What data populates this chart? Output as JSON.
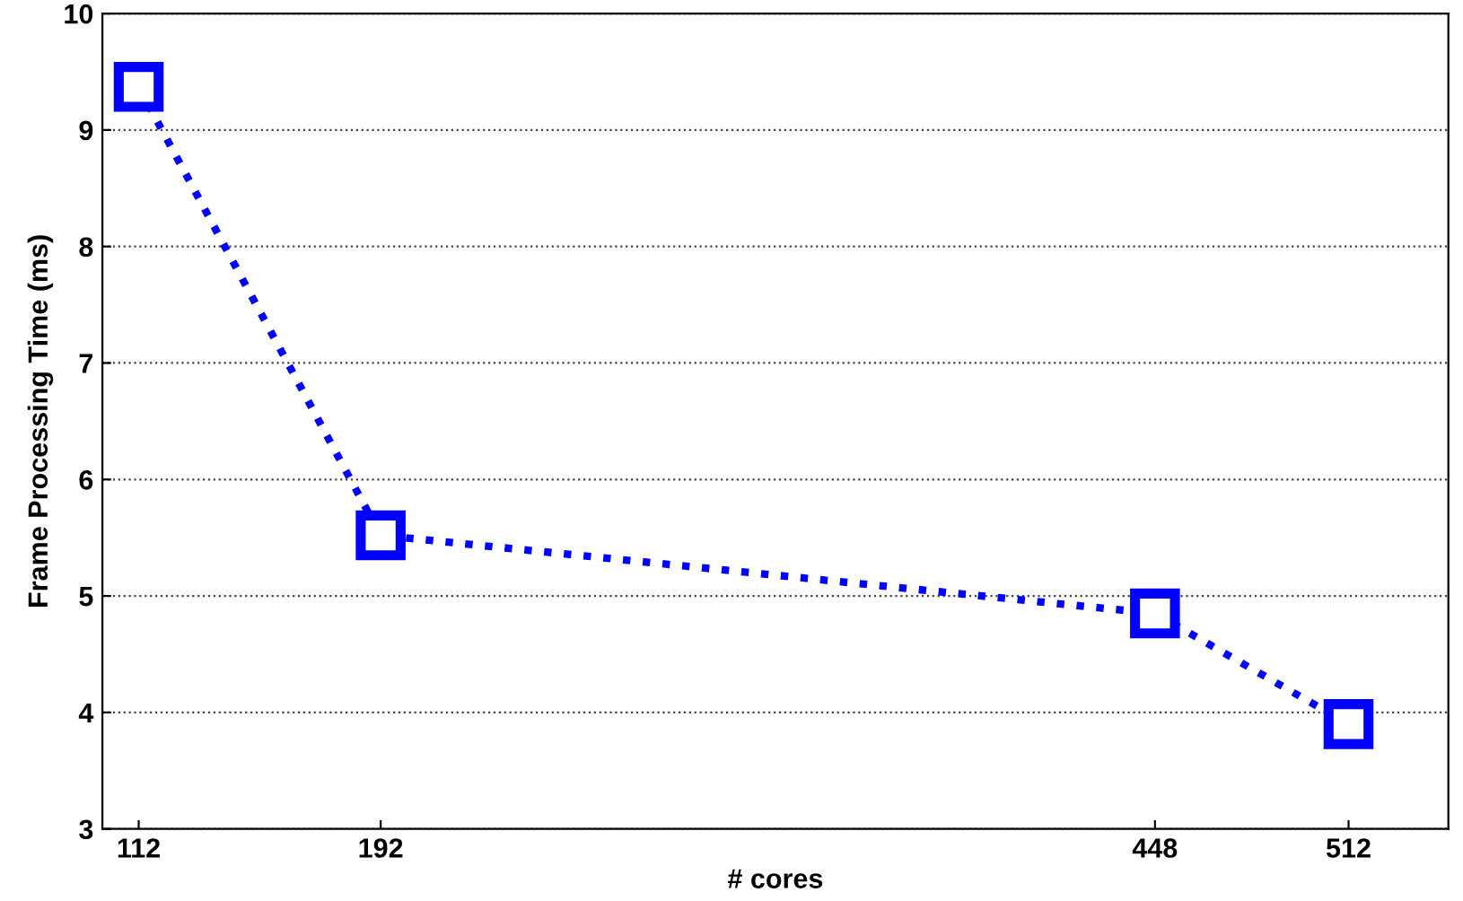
{
  "chart_data": {
    "type": "line",
    "xlabel": "# cores",
    "ylabel": "Frame Processing Time (ms)",
    "x": [
      112,
      192,
      448,
      512
    ],
    "series": [
      {
        "color": "#0000ff",
        "values": [
          9.37,
          5.52,
          4.85,
          3.9
        ]
      }
    ],
    "xlim": [
      100,
      545
    ],
    "xticks": [
      112,
      192,
      448,
      512
    ],
    "ylim": [
      3,
      10
    ],
    "yticks": [
      3,
      4,
      5,
      6,
      7,
      8,
      9,
      10
    ],
    "grid": "y",
    "marker": "square",
    "line_style": "dotted"
  }
}
